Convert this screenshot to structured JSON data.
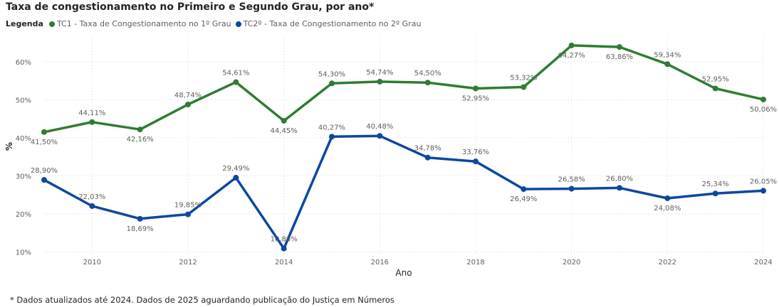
{
  "chart_data": {
    "type": "line",
    "title": "Taxa de congestionamento no Primeiro e Segundo Grau, por ano*",
    "legend_heading": "Legenda",
    "legend_position": "top-left",
    "xlabel": "Ano",
    "ylabel": "%",
    "grid": true,
    "x": [
      2009,
      2010,
      2011,
      2012,
      2013,
      2014,
      2015,
      2016,
      2017,
      2018,
      2019,
      2020,
      2021,
      2022,
      2023,
      2024
    ],
    "xlim": [
      2009,
      2024
    ],
    "ylim": [
      9.5,
      65
    ],
    "x_ticks": [
      2010,
      2012,
      2014,
      2016,
      2018,
      2020,
      2022,
      2024
    ],
    "x_tick_labels": [
      "2010",
      "2012",
      "2014",
      "2016",
      "2018",
      "2020",
      "2022",
      "2024"
    ],
    "y_ticks": [
      10,
      20,
      30,
      40,
      50,
      60
    ],
    "y_tick_labels": [
      "10%",
      "20%",
      "30%",
      "40%",
      "50%",
      "60%"
    ],
    "series": [
      {
        "name": "TC1 - Taxa de Congestionamento no 1º Grau",
        "color": "#2e7d32",
        "values": [
          41.5,
          44.11,
          42.16,
          48.74,
          54.61,
          44.45,
          54.3,
          54.74,
          54.5,
          52.95,
          53.32,
          64.27,
          63.86,
          59.34,
          52.95,
          50.06
        ],
        "labels": [
          "41,50%",
          "44,11%",
          "42,16%",
          "48,74%",
          "54,61%",
          "44,45%",
          "54,30%",
          "54,74%",
          "54,50%",
          "52,95%",
          "53,32%",
          "64,27%",
          "63,86%",
          "59,34%",
          "52,95%",
          "50,06%"
        ],
        "label_pos": [
          "below",
          "above",
          "below",
          "above",
          "above",
          "below",
          "above",
          "above",
          "above",
          "below",
          "above",
          "below",
          "below",
          "above",
          "above",
          "below"
        ]
      },
      {
        "name": "TC2º - Taxa de Congestionamento no 2º Grau",
        "color": "#0d47a1",
        "values": [
          28.9,
          22.03,
          18.69,
          19.85,
          29.49,
          10.86,
          40.27,
          40.48,
          34.78,
          33.76,
          26.49,
          26.58,
          26.8,
          24.08,
          25.34,
          26.05
        ],
        "labels": [
          "28,90%",
          "22,03%",
          "18,69%",
          "19,85%",
          "29,49%",
          "10,86%",
          "40,27%",
          "40,48%",
          "34,78%",
          "33,76%",
          "26,49%",
          "26,58%",
          "26,80%",
          "24,08%",
          "25,34%",
          "26,05%"
        ],
        "label_pos": [
          "above",
          "above",
          "below",
          "above",
          "above",
          "above",
          "above",
          "above",
          "above",
          "above",
          "below",
          "above",
          "above",
          "below",
          "above",
          "above"
        ]
      }
    ]
  },
  "footnote": "* Dados atualizados até 2024. Dados de 2025 aguardando publicação do Justiça em Números"
}
